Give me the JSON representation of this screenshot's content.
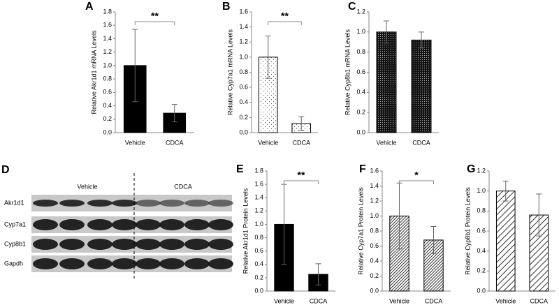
{
  "chart_data": [
    {
      "type": "bar",
      "panel_label": "A",
      "ylabel": "Relative Akr1d1 mRNA Levels",
      "categories": [
        "Vehicle",
        "CDCA"
      ],
      "values": [
        1.0,
        0.29
      ],
      "errors": [
        0.54,
        0.13
      ],
      "pattern": "solid",
      "color": "#000000",
      "significance": "**",
      "ylim": [
        0,
        1.8
      ],
      "yticks": [
        {
          "value": 0,
          "label": "0.0"
        },
        0.2,
        0.4,
        0.6,
        0.8,
        {
          "value": 1,
          "label": "1.0"
        },
        1.2,
        1.4,
        1.6,
        1.8
      ]
    },
    {
      "type": "bar",
      "panel_label": "B",
      "ylabel": "Relative Cyp7a1 mRNA Levels",
      "categories": [
        "Vehicle",
        "CDCA"
      ],
      "values": [
        1.0,
        0.12
      ],
      "errors": [
        0.28,
        0.09
      ],
      "pattern": "sparse-dots",
      "color": "#000000",
      "significance": "**",
      "ylim": [
        0,
        1.6
      ],
      "yticks": [
        {
          "value": 0,
          "label": "0.0"
        },
        0.2,
        0.4,
        0.6,
        0.8,
        {
          "value": 1,
          "label": "1.0"
        },
        1.2,
        1.4,
        1.6
      ]
    },
    {
      "type": "bar",
      "panel_label": "C",
      "ylabel": "Relative Cyp8b1 mRNA Levels",
      "categories": [
        "Vehicle",
        "CDCA"
      ],
      "values": [
        1.0,
        0.92
      ],
      "errors": [
        0.11,
        0.08
      ],
      "pattern": "dense-dots",
      "color": "#000000",
      "ylim": [
        0,
        1.2
      ],
      "yticks": [
        {
          "value": 0,
          "label": "0.0"
        },
        0.2,
        0.4,
        0.6,
        0.8,
        {
          "value": 1,
          "label": "1.0"
        },
        1.2
      ]
    },
    {
      "type": "bar",
      "panel_label": "E",
      "ylabel": "Relative Akr1d1 Protein Levels",
      "categories": [
        "Vehicle",
        "CDCA"
      ],
      "values": [
        1.0,
        0.25
      ],
      "errors": [
        0.6,
        0.16
      ],
      "pattern": "solid",
      "color": "#000000",
      "significance": "**",
      "ylim": [
        0,
        1.8
      ],
      "yticks": [
        {
          "value": 0,
          "label": "0.0"
        },
        0.2,
        0.4,
        0.6,
        0.8,
        {
          "value": 1,
          "label": "1.0"
        },
        1.2,
        1.4,
        1.6,
        1.8
      ]
    },
    {
      "type": "bar",
      "panel_label": "F",
      "ylabel": "Relative Cyp7a1 Protein Levels",
      "categories": [
        "Vehicle",
        "CDCA"
      ],
      "values": [
        1.0,
        0.68
      ],
      "errors": [
        0.44,
        0.18
      ],
      "pattern": "dense-hatch",
      "color": "#000000",
      "significance": "*",
      "ylim": [
        0,
        1.6
      ],
      "yticks": [
        {
          "value": 0,
          "label": "0.0"
        },
        0.2,
        0.4,
        0.6,
        0.8,
        {
          "value": 1,
          "label": "1.0"
        },
        1.2,
        1.4,
        1.6
      ]
    },
    {
      "type": "bar",
      "panel_label": "G",
      "ylabel": "Relative Cyp8b1 Protein Levels",
      "categories": [
        "Vehicle",
        "CDCA"
      ],
      "values": [
        1.0,
        0.76
      ],
      "errors": [
        0.1,
        0.21
      ],
      "pattern": "wide-hatch",
      "color": "#000000",
      "ylim": [
        0,
        1.2
      ],
      "yticks": [
        {
          "value": 0,
          "label": "0.0"
        },
        0.2,
        0.4,
        0.6,
        0.8,
        {
          "value": 1,
          "label": "1.0"
        },
        1.2
      ]
    }
  ],
  "blot": {
    "panel_label": "D",
    "groups": [
      "Vehicle",
      "CDCA"
    ],
    "rows": [
      "Akr1d1",
      "Cyp7a1",
      "Cyp8b1",
      "Gapdh"
    ]
  }
}
